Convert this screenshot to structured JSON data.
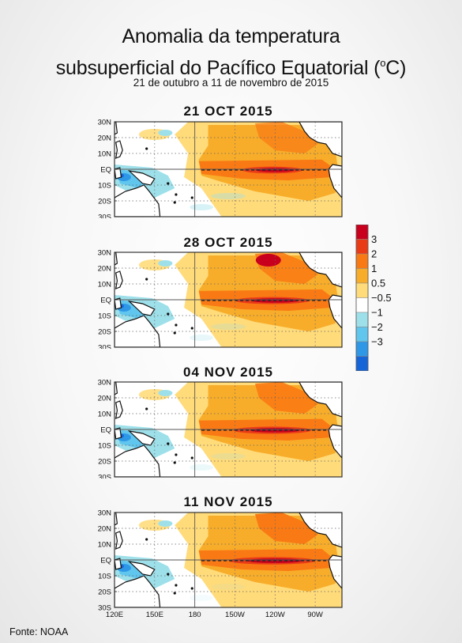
{
  "header": {
    "title_line1": "Anomalia da temperatura",
    "title_line2_pre": "subsuperficial do Pacífico Equatorial (",
    "title_sup": "o",
    "title_line2_post": "C)",
    "subtitle": "21 de outubro a 11 de novembro de 2015"
  },
  "maps": [
    {
      "label": "21 OCT 2015",
      "intensity": 0.7
    },
    {
      "label": "28 OCT 2015",
      "intensity": 0.85
    },
    {
      "label": "04 NOV 2015",
      "intensity": 0.9
    },
    {
      "label": "11 NOV 2015",
      "intensity": 1.0
    }
  ],
  "lat_labels": [
    "30N",
    "20N",
    "10N",
    "EQ",
    "10S",
    "20S",
    "30S"
  ],
  "lon_labels": [
    "120E",
    "150E",
    "180",
    "150W",
    "120W",
    "90W"
  ],
  "legend": {
    "labels": [
      "3",
      "2",
      "1",
      "0.5",
      "−0.5",
      "−1",
      "−2",
      "−3"
    ],
    "colors": [
      "#c8001e",
      "#ea3b17",
      "#f97a14",
      "#f8ad2a",
      "#ffdb7a",
      "#ffffff",
      "#9ee0ea",
      "#60c6ee",
      "#2f98e6",
      "#1565d8"
    ]
  },
  "source": "Fonte: NOAA"
}
